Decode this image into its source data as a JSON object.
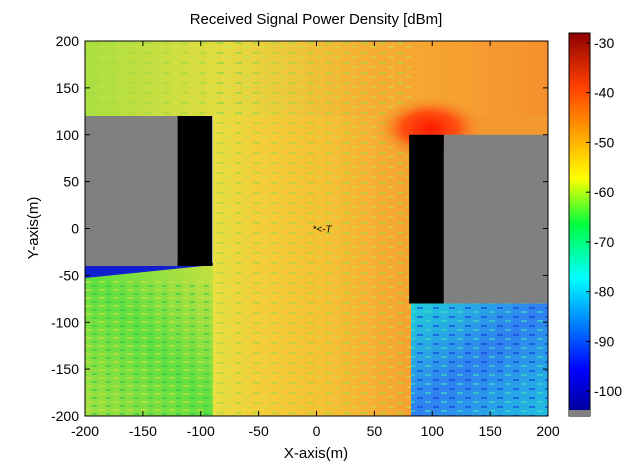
{
  "chart_data": {
    "type": "heatmap",
    "title": "Received Signal Power Density [dBm]",
    "xlabel": "X-axis(m)",
    "ylabel": "Y-axis(m)",
    "xlim": [
      -200,
      200
    ],
    "ylim": [
      -200,
      200
    ],
    "x_ticks": [
      -200,
      -150,
      -100,
      -50,
      0,
      50,
      100,
      150,
      200
    ],
    "y_ticks": [
      -200,
      -150,
      -100,
      -50,
      0,
      50,
      100,
      150,
      200
    ],
    "colorbar": {
      "range": [
        -105,
        -28
      ],
      "ticks": [
        -30,
        -40,
        -50,
        -60,
        -70,
        -80,
        -90,
        -100
      ],
      "colormap": "jet"
    },
    "transmitter": {
      "label": "*<-T",
      "x": 0,
      "y": 0
    },
    "buildings": [
      {
        "name": "left building",
        "x": [
          -120,
          -90
        ],
        "y": [
          -40,
          120
        ],
        "color": "#000000"
      },
      {
        "name": "right building",
        "x": [
          80,
          110
        ],
        "y": [
          -80,
          100
        ],
        "color": "#000000"
      }
    ],
    "no_data_regions": [
      {
        "name": "left gray region",
        "x": [
          -200,
          -120
        ],
        "y": [
          -40,
          120
        ],
        "color": "#808080"
      },
      {
        "name": "right gray region",
        "x": [
          110,
          200
        ],
        "y": [
          -80,
          100
        ],
        "color": "#808080"
      }
    ],
    "regions": [
      {
        "name": "main street",
        "x": [
          -90,
          80
        ],
        "y": [
          -200,
          200
        ],
        "approx_power_dbm": -55
      },
      {
        "name": "top street",
        "x": [
          -200,
          200
        ],
        "y": [
          120,
          200
        ],
        "approx_power_dbm": -54
      },
      {
        "name": "right street top",
        "x": [
          80,
          200
        ],
        "y": [
          100,
          120
        ],
        "approx_power_dbm": -48
      },
      {
        "name": "bottom-left area",
        "x": [
          -200,
          -90
        ],
        "y": [
          -200,
          -40
        ],
        "approx_power_dbm": -64
      },
      {
        "name": "bottom-right area",
        "x": [
          80,
          200
        ],
        "y": [
          -200,
          -80
        ],
        "approx_power_dbm": -78
      },
      {
        "name": "hot spot near corner",
        "x": [
          60,
          120
        ],
        "y": [
          100,
          140
        ],
        "approx_power_dbm": -35
      }
    ]
  }
}
